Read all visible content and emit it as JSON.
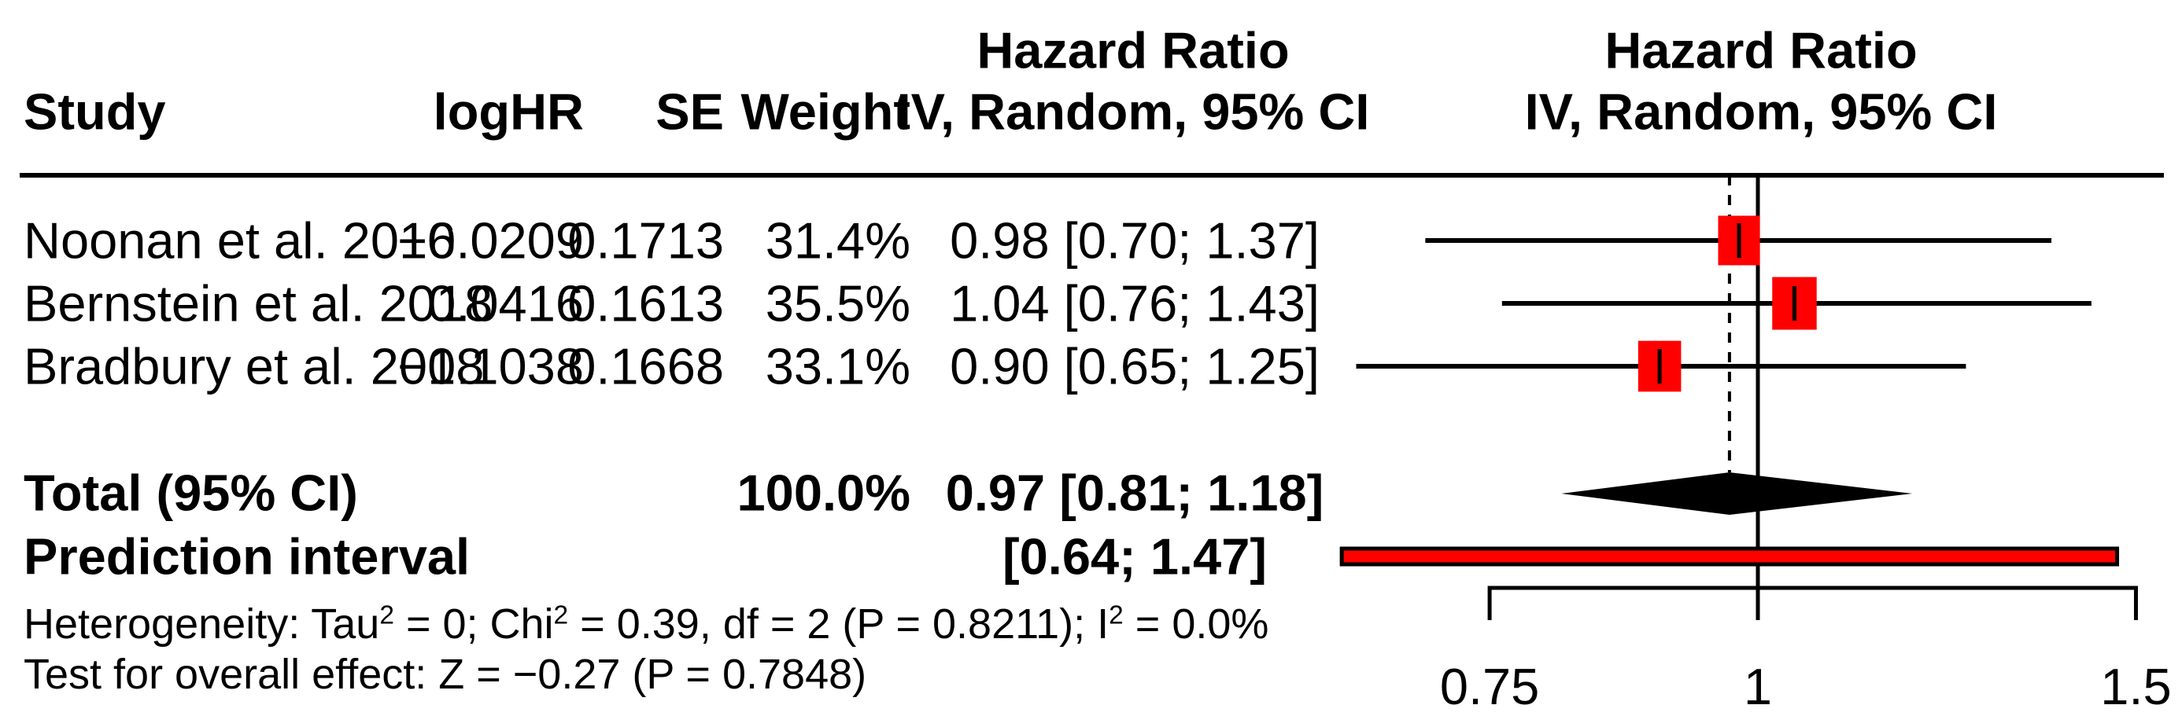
{
  "table": {
    "effect_col_header_top": "Hazard Ratio",
    "col_headers": {
      "study": "Study",
      "loghr": "logHR",
      "se": "SE",
      "weight": "Weight",
      "effect": "IV, Random, 95% CI"
    },
    "plot_header": {
      "line1": "Hazard Ratio",
      "line2": "IV, Random, 95% CI"
    },
    "studies": [
      {
        "name": "Noonan et al. 2016",
        "loghr": "−0.0209",
        "se": "0.1713",
        "weight": "31.4%",
        "effect": "0.98 [0.70; 1.37]"
      },
      {
        "name": "Bernstein et al. 2018",
        "loghr": "0.0416",
        "se": "0.1613",
        "weight": "35.5%",
        "effect": "1.04 [0.76; 1.43]"
      },
      {
        "name": "Bradbury et al. 2018",
        "loghr": "−0.1038",
        "se": "0.1668",
        "weight": "33.1%",
        "effect": "0.90 [0.65; 1.25]"
      }
    ],
    "total": {
      "label": "Total (95% CI)",
      "weight": "100.0%",
      "effect": "0.97 [0.81; 1.18]"
    },
    "prediction": {
      "label": "Prediction interval",
      "effect": "[0.64; 1.47]"
    },
    "heterogeneity_text": "Heterogeneity: Tau² = 0; Chi² = 0.39, df = 2 (P = 0.8211); I² = 0.0%",
    "overall_test_text": "Test for overall effect: Z = −0.27 (P = 0.7848)"
  },
  "chart_data": {
    "type": "forest",
    "effect_measure": "Hazard Ratio",
    "model": "IV, Random, 95% CI",
    "x_scale": "log",
    "x_ticks": [
      0.75,
      1,
      1.5
    ],
    "x_tick_labels": [
      "0.75",
      "1",
      "1.5"
    ],
    "reference_line": 1.0,
    "pooled_dashed_line": 0.97,
    "studies": [
      {
        "name": "Noonan et al. 2016",
        "logHR": -0.0209,
        "SE": 0.1713,
        "weight_pct": 31.4,
        "hr": 0.98,
        "ci_low": 0.7,
        "ci_high": 1.37
      },
      {
        "name": "Bernstein et al. 2018",
        "logHR": 0.0416,
        "SE": 0.1613,
        "weight_pct": 35.5,
        "hr": 1.04,
        "ci_low": 0.76,
        "ci_high": 1.43
      },
      {
        "name": "Bradbury et al. 2018",
        "logHR": -0.1038,
        "SE": 0.1668,
        "weight_pct": 33.1,
        "hr": 0.9,
        "ci_low": 0.65,
        "ci_high": 1.25
      }
    ],
    "total": {
      "label": "Total (95% CI)",
      "weight_pct": 100.0,
      "hr": 0.97,
      "ci_low": 0.81,
      "ci_high": 1.18
    },
    "prediction_interval": {
      "ci_low": 0.64,
      "ci_high": 1.47
    },
    "heterogeneity": {
      "tau2": 0,
      "chi2": 0.39,
      "df": 2,
      "p": 0.8211,
      "i2_pct": 0.0
    },
    "overall_effect_test": {
      "z": -0.27,
      "p": 0.7848
    },
    "colors": {
      "marker_fill": "#FF0000",
      "line": "#000000",
      "diamond_fill": "#000000"
    }
  }
}
